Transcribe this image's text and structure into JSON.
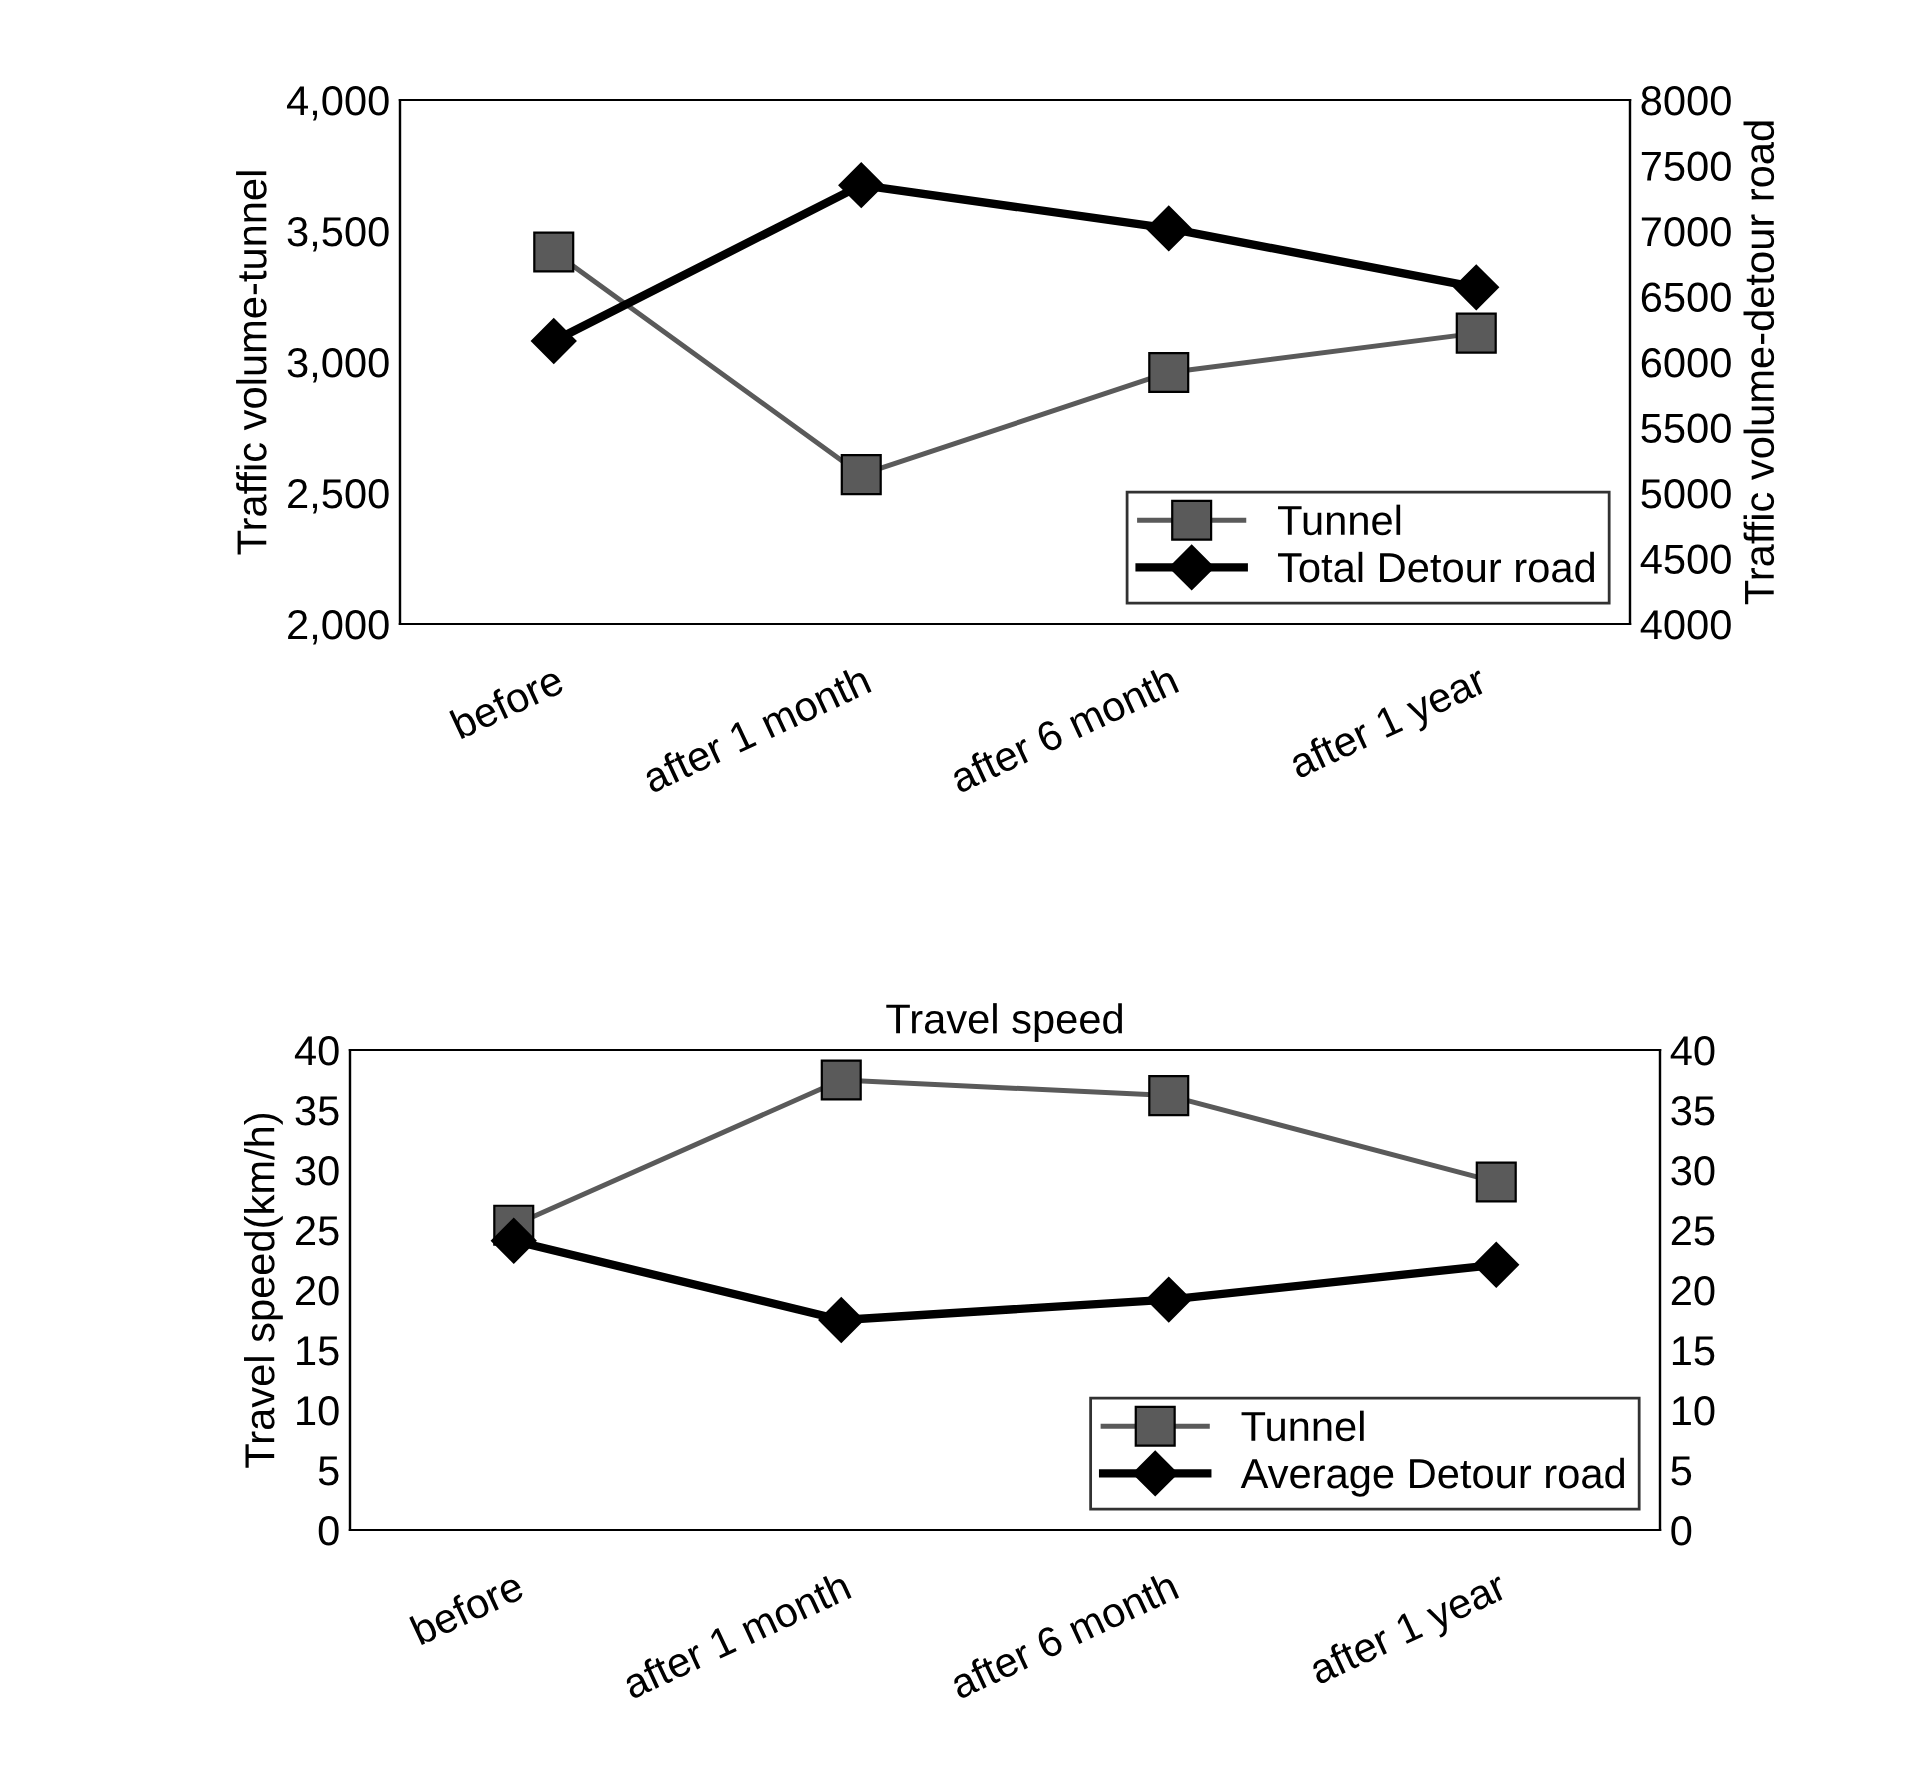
{
  "chart_data": [
    {
      "type": "line",
      "categories": [
        "before",
        "after 1 month",
        "after 6 month",
        "after 1 year"
      ],
      "ylabel": "Traffic volume-tunnel",
      "y2label": "Traffic volume-detour road",
      "ylim": [
        2000,
        4000
      ],
      "yticks": [
        {
          "value": 2000,
          "label": "2,000"
        },
        {
          "value": 2500,
          "label": "2,500"
        },
        {
          "value": 3000,
          "label": "3,000"
        },
        {
          "value": 3500,
          "label": "3,500"
        },
        {
          "value": 4000,
          "label": "4,000"
        }
      ],
      "y2lim": [
        4000,
        8000
      ],
      "y2ticks": [
        4000,
        4500,
        5000,
        5500,
        6000,
        6500,
        7000,
        7500,
        8000
      ],
      "legend": "bottom right",
      "grid": false,
      "series": [
        {
          "name": "Tunnel",
          "color": "#5a5a5a",
          "marker": "square",
          "values": [
            3420,
            2570,
            2960,
            3110
          ]
        },
        {
          "name": "Total Detour road",
          "color": "#000000",
          "marker": "diamond",
          "axis": "y2",
          "values": [
            6160,
            7350,
            7020,
            6570
          ]
        }
      ]
    },
    {
      "type": "line",
      "title": "Travel speed",
      "categories": [
        "before",
        "after 1 month",
        "after 6 month",
        "after 1 year"
      ],
      "ylabel": "Travel speed(km/h)",
      "ylim": [
        0,
        40
      ],
      "yticks": [
        0,
        5,
        10,
        15,
        20,
        25,
        30,
        35,
        40
      ],
      "y2lim": [
        0,
        40
      ],
      "y2ticks": [
        0,
        5,
        10,
        15,
        20,
        25,
        30,
        35,
        40
      ],
      "legend": "bottom right",
      "grid": false,
      "series": [
        {
          "name": "Tunnel",
          "color": "#5a5a5a",
          "marker": "square",
          "values": [
            25.4,
            37.5,
            36.2,
            29.0
          ]
        },
        {
          "name": "Average Detour road",
          "color": "#000000",
          "marker": "diamond",
          "values": [
            24.1,
            17.5,
            19.2,
            22.1
          ]
        }
      ]
    }
  ]
}
